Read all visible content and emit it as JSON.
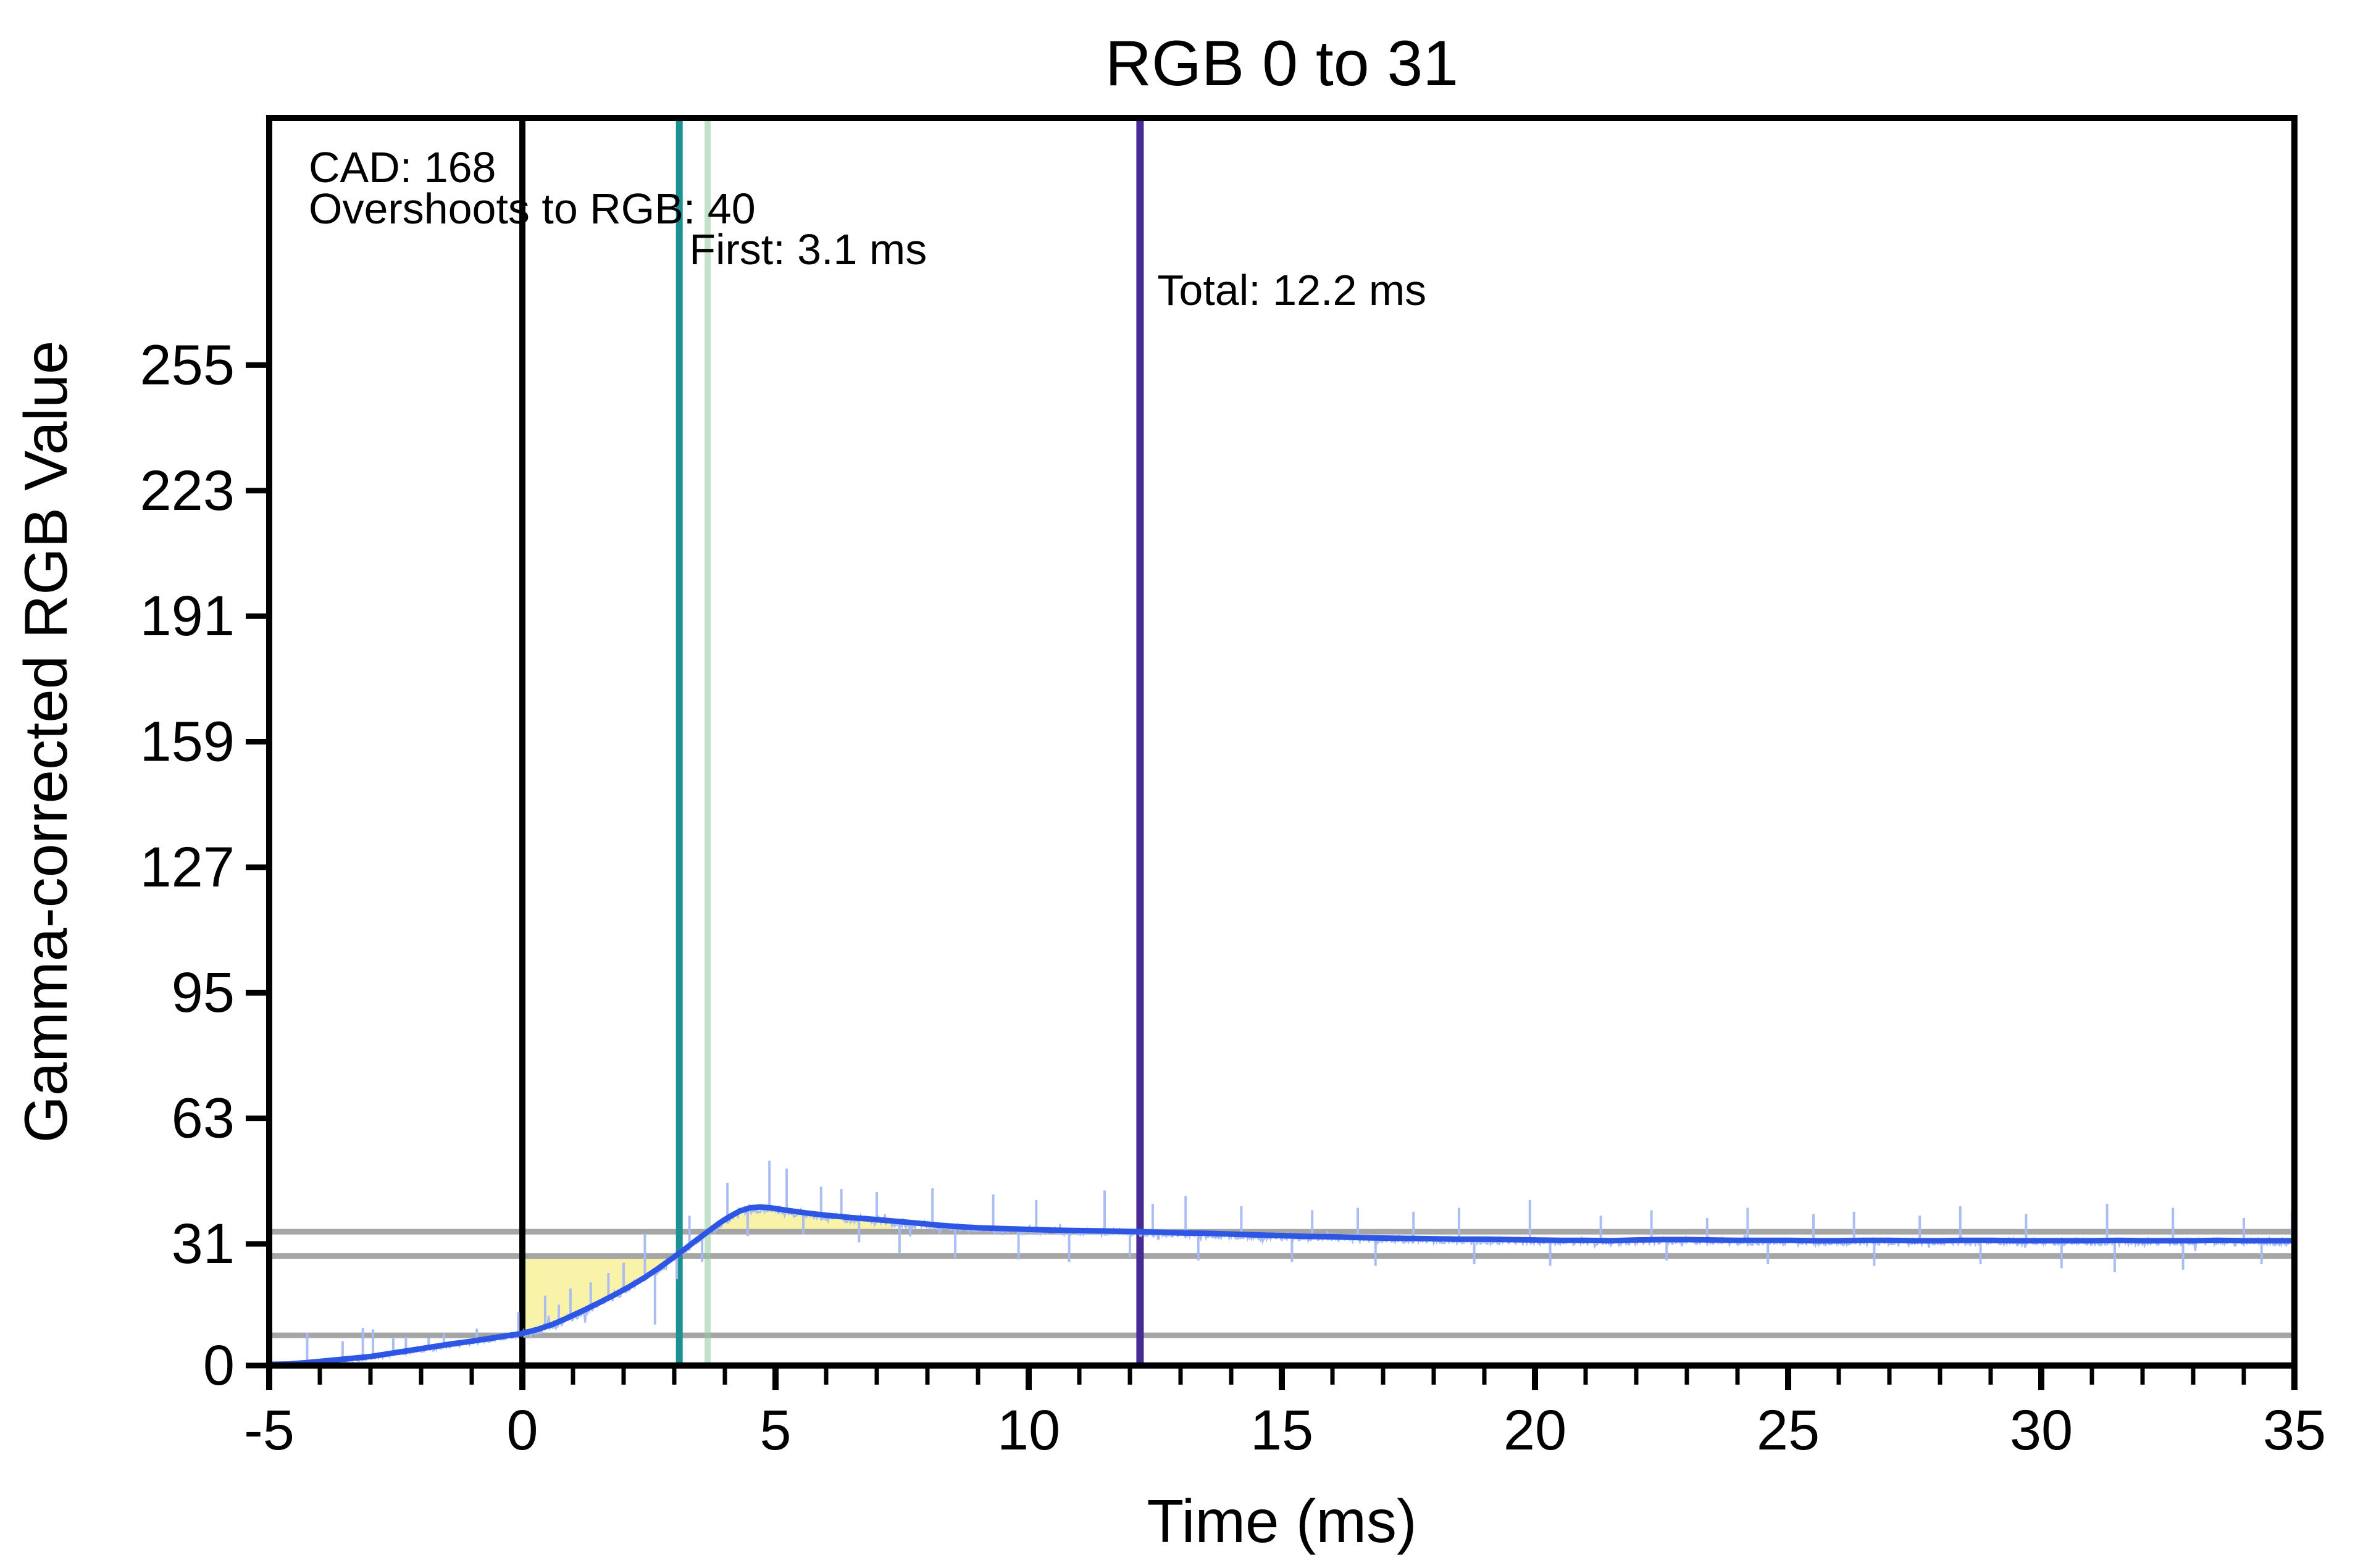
{
  "title": "RGB 0 to 31",
  "annotations": {
    "cad": "CAD: 168",
    "overshoot": "Overshoots to RGB: 40",
    "first": "First: 3.1 ms",
    "total": "Total: 12.2 ms"
  },
  "chart_data": {
    "type": "line",
    "title": "RGB 0 to 31",
    "xlabel": "Time (ms)",
    "ylabel": "Gamma-corrected RGB Value",
    "xlim": [
      -5,
      35
    ],
    "ylim": [
      0,
      318
    ],
    "x_ticks_major": [
      -5,
      0,
      5,
      10,
      15,
      20,
      25,
      30,
      35
    ],
    "x_minor_step_ms": 1,
    "y_ticks": [
      0,
      31,
      63,
      95,
      127,
      159,
      191,
      223,
      255
    ],
    "grid": false,
    "legend": "none",
    "transition": {
      "start_rgb": 0,
      "end_rgb": 31
    },
    "stats": {
      "cad": 168,
      "overshoot_rgb": 40,
      "first_ms": 3.1,
      "total_ms": 12.2
    },
    "colors": {
      "smooth_line": "#2e56e4",
      "raw_trace": "#a6baf2",
      "overshoot_fill": "#f8f2a4",
      "tolerance_line": "#a5a5a5",
      "start_line": "#000000",
      "first_line": "#1d9191",
      "upper_cross_line": "#8fcc9f",
      "total_line": "#472a92",
      "text": "#000000"
    },
    "tolerance_lines_rgb": [
      34.1,
      27.9,
      7.7
    ],
    "event_lines": [
      {
        "name": "transition-start",
        "t_ms": 0,
        "color": "#000000",
        "width": 10,
        "opacity": 1
      },
      {
        "name": "first-response",
        "t_ms": 3.1,
        "color": "#1d9191",
        "width": 11,
        "opacity": 1
      },
      {
        "name": "upper-tolerance-cross",
        "t_ms": 3.66,
        "color": "#8fcc9f",
        "width": 10,
        "opacity": 0.55
      },
      {
        "name": "total-response",
        "t_ms": 12.2,
        "color": "#472a92",
        "width": 12,
        "opacity": 1
      }
    ],
    "overshoot_fills": [
      {
        "from_ms": 0,
        "to_ms": 3.02,
        "bound_rgb": 27.9,
        "side": "below"
      },
      {
        "from_ms": 3.66,
        "to_ms": 7.35,
        "bound_rgb": 34.1,
        "side": "above"
      }
    ],
    "series": [
      {
        "name": "smoothed-response",
        "color": "#2e56e4",
        "width": 9,
        "points": [
          [
            -5,
            0.3
          ],
          [
            -4.6,
            0.4
          ],
          [
            -4.2,
            0.8
          ],
          [
            -3.8,
            1.3
          ],
          [
            -3.4,
            1.8
          ],
          [
            -3.0,
            2.3
          ],
          [
            -2.6,
            3.1
          ],
          [
            -2.2,
            3.9
          ],
          [
            -1.8,
            4.7
          ],
          [
            -1.4,
            5.5
          ],
          [
            -1.0,
            6.2
          ],
          [
            -0.6,
            7.0
          ],
          [
            -0.2,
            7.8
          ],
          [
            0,
            8.2
          ],
          [
            0.3,
            9.2
          ],
          [
            0.6,
            10.5
          ],
          [
            0.9,
            12.2
          ],
          [
            1.2,
            14.0
          ],
          [
            1.5,
            15.9
          ],
          [
            1.8,
            17.9
          ],
          [
            2.1,
            20.0
          ],
          [
            2.4,
            22.3
          ],
          [
            2.7,
            24.9
          ],
          [
            3.0,
            27.7
          ],
          [
            3.2,
            29.6
          ],
          [
            3.4,
            31.6
          ],
          [
            3.66,
            34.1
          ],
          [
            3.9,
            36.4
          ],
          [
            4.1,
            38.0
          ],
          [
            4.3,
            39.4
          ],
          [
            4.5,
            40.2
          ],
          [
            4.7,
            40.4
          ],
          [
            4.9,
            40.2
          ],
          [
            5.2,
            39.6
          ],
          [
            5.6,
            38.9
          ],
          [
            6.0,
            38.3
          ],
          [
            6.5,
            37.7
          ],
          [
            7.0,
            37.2
          ],
          [
            7.35,
            36.8
          ],
          [
            7.8,
            36.3
          ],
          [
            8.2,
            35.8
          ],
          [
            8.6,
            35.4
          ],
          [
            9.0,
            35.1
          ],
          [
            9.5,
            34.9
          ],
          [
            10,
            34.7
          ],
          [
            10.5,
            34.5
          ],
          [
            11,
            34.4
          ],
          [
            11.5,
            34.3
          ],
          [
            12.2,
            34.1
          ],
          [
            13,
            33.8
          ],
          [
            13.5,
            33.7
          ],
          [
            14,
            33.5
          ],
          [
            14.5,
            33.3
          ],
          [
            15,
            33.1
          ],
          [
            15.5,
            32.9
          ],
          [
            16,
            32.8
          ],
          [
            16.5,
            32.6
          ],
          [
            17,
            32.5
          ],
          [
            17.5,
            32.4
          ],
          [
            18,
            32.3
          ],
          [
            18.5,
            32.2
          ],
          [
            19,
            32.2
          ],
          [
            19.5,
            32.1
          ],
          [
            20,
            32.0
          ],
          [
            20.5,
            31.9
          ],
          [
            21,
            31.9
          ],
          [
            21.5,
            31.8
          ],
          [
            22,
            32.0
          ],
          [
            22.5,
            32.1
          ],
          [
            23,
            32.1
          ],
          [
            23.5,
            32.0
          ],
          [
            24,
            31.9
          ],
          [
            24.5,
            31.9
          ],
          [
            25,
            31.9
          ],
          [
            25.5,
            31.8
          ],
          [
            26,
            31.8
          ],
          [
            26.5,
            31.9
          ],
          [
            27,
            31.9
          ],
          [
            27.5,
            31.8
          ],
          [
            28,
            31.8
          ],
          [
            28.5,
            31.9
          ],
          [
            29,
            31.9
          ],
          [
            29.5,
            31.8
          ],
          [
            30,
            31.8
          ],
          [
            30.5,
            31.8
          ],
          [
            31,
            31.8
          ],
          [
            31.5,
            31.9
          ],
          [
            32,
            31.8
          ],
          [
            32.5,
            31.8
          ],
          [
            33,
            31.8
          ],
          [
            33.5,
            31.9
          ],
          [
            34,
            31.8
          ],
          [
            34.5,
            31.8
          ],
          [
            35,
            31.8
          ]
        ]
      },
      {
        "name": "raw-sensor-trace",
        "color": "#a6baf2",
        "width": 3,
        "noise_amp_rgb": 0.9,
        "noise_offset_rgb": -0.35,
        "seed": 1337,
        "step_ms": 0.02
      },
      {
        "name": "noise-spikes",
        "color": "#a6baf2",
        "width": 4,
        "spikes": [
          [
            -4.25,
            8.3
          ],
          [
            -3.55,
            6.2
          ],
          [
            -3.15,
            9.6
          ],
          [
            -2.95,
            9.2
          ],
          [
            -2.55,
            6.9
          ],
          [
            -2.3,
            7.3
          ],
          [
            -1.85,
            7.0
          ],
          [
            -1.55,
            8.1
          ],
          [
            -0.9,
            9.4
          ],
          [
            -0.45,
            7.8
          ],
          [
            -0.08,
            13.6
          ],
          [
            0.45,
            17.8
          ],
          [
            0.72,
            15.5
          ],
          [
            0.95,
            19.6
          ],
          [
            1.35,
            21.2
          ],
          [
            1.7,
            23.6
          ],
          [
            2.0,
            26.2
          ],
          [
            2.42,
            33.6
          ],
          [
            2.62,
            10.4
          ],
          [
            3.05,
            22.0
          ],
          [
            3.3,
            38.2
          ],
          [
            3.55,
            26.4
          ],
          [
            4.05,
            46.6
          ],
          [
            4.45,
            33.0
          ],
          [
            4.88,
            52.2
          ],
          [
            5.22,
            50.2
          ],
          [
            5.55,
            33.4
          ],
          [
            5.9,
            45.6
          ],
          [
            6.3,
            45.0
          ],
          [
            6.65,
            31.4
          ],
          [
            7.0,
            44.2
          ],
          [
            7.45,
            28.4
          ],
          [
            8.1,
            45.2
          ],
          [
            8.55,
            27.4
          ],
          [
            9.3,
            43.6
          ],
          [
            9.8,
            27.0
          ],
          [
            10.15,
            42.2
          ],
          [
            10.8,
            26.4
          ],
          [
            11.5,
            44.6
          ],
          [
            12.0,
            27.6
          ],
          [
            12.45,
            41.2
          ],
          [
            13.1,
            43.2
          ],
          [
            13.35,
            26.8
          ],
          [
            14.2,
            40.6
          ],
          [
            15.2,
            26.4
          ],
          [
            15.6,
            39.6
          ],
          [
            16.5,
            40.2
          ],
          [
            16.85,
            25.4
          ],
          [
            17.6,
            39.2
          ],
          [
            18.5,
            40.2
          ],
          [
            18.8,
            25.8
          ],
          [
            19.9,
            42.2
          ],
          [
            20.3,
            25.4
          ],
          [
            21.3,
            38.2
          ],
          [
            22.3,
            39.6
          ],
          [
            22.6,
            26.8
          ],
          [
            23.4,
            37.6
          ],
          [
            24.2,
            40.2
          ],
          [
            24.6,
            25.8
          ],
          [
            25.5,
            38.6
          ],
          [
            26.3,
            39.2
          ],
          [
            26.7,
            25.4
          ],
          [
            27.6,
            38.2
          ],
          [
            28.4,
            40.6
          ],
          [
            28.8,
            25.8
          ],
          [
            29.7,
            38.6
          ],
          [
            30.4,
            24.8
          ],
          [
            31.3,
            41.2
          ],
          [
            31.45,
            23.8
          ],
          [
            32.6,
            40.2
          ],
          [
            32.8,
            24.4
          ],
          [
            34.0,
            37.6
          ],
          [
            34.35,
            25.8
          ],
          [
            34.95,
            39.2
          ]
        ]
      }
    ]
  }
}
